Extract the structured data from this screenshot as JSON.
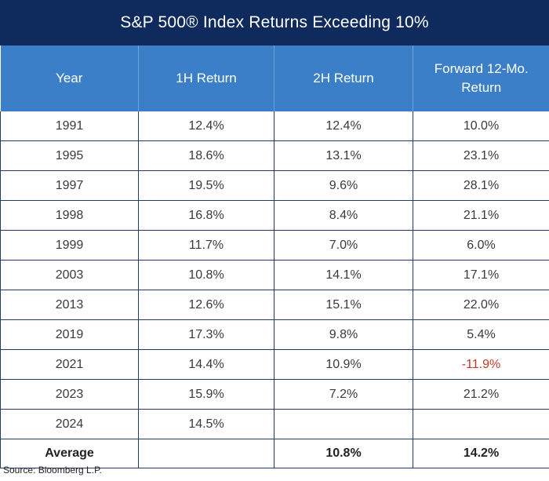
{
  "chart_data": {
    "type": "table",
    "title": "S&P 500® Index Returns Exceeding 10%",
    "columns": [
      "Year",
      "1H Return",
      "2H Return",
      "Forward 12-Mo. Return"
    ],
    "rows": [
      {
        "year": "1991",
        "h1": "12.4%",
        "h2": "12.4%",
        "fwd": "10.0%",
        "fwd_negative": false
      },
      {
        "year": "1995",
        "h1": "18.6%",
        "h2": "13.1%",
        "fwd": "23.1%",
        "fwd_negative": false
      },
      {
        "year": "1997",
        "h1": "19.5%",
        "h2": "9.6%",
        "fwd": "28.1%",
        "fwd_negative": false
      },
      {
        "year": "1998",
        "h1": "16.8%",
        "h2": "8.4%",
        "fwd": "21.1%",
        "fwd_negative": false
      },
      {
        "year": "1999",
        "h1": "11.7%",
        "h2": "7.0%",
        "fwd": "6.0%",
        "fwd_negative": false
      },
      {
        "year": "2003",
        "h1": "10.8%",
        "h2": "14.1%",
        "fwd": "17.1%",
        "fwd_negative": false
      },
      {
        "year": "2013",
        "h1": "12.6%",
        "h2": "15.1%",
        "fwd": "22.0%",
        "fwd_negative": false
      },
      {
        "year": "2019",
        "h1": "17.3%",
        "h2": "9.8%",
        "fwd": "5.4%",
        "fwd_negative": false
      },
      {
        "year": "2021",
        "h1": "14.4%",
        "h2": "10.9%",
        "fwd": "-11.9%",
        "fwd_negative": true
      },
      {
        "year": "2023",
        "h1": "15.9%",
        "h2": "7.2%",
        "fwd": "21.2%",
        "fwd_negative": false
      },
      {
        "year": "2024",
        "h1": "14.5%",
        "h2": "",
        "fwd": "",
        "fwd_negative": false
      }
    ],
    "average": {
      "label": "Average",
      "h1": "",
      "h2": "10.8%",
      "fwd": "14.2%"
    }
  },
  "source": "Source: Bloomberg L.P.",
  "colors": {
    "title_bg": "#0f2a5c",
    "header_bg": "#3b7fc9",
    "negative": "#c0392b",
    "border": "#243a63"
  }
}
